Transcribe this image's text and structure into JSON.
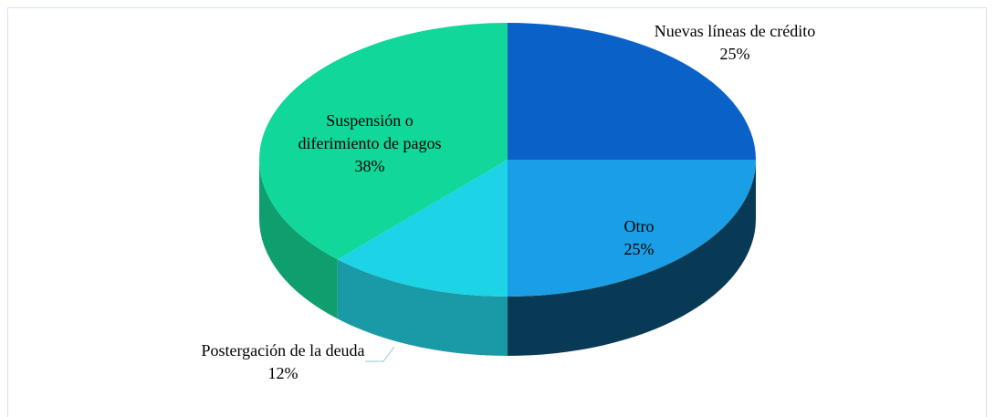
{
  "chart_data": {
    "type": "pie",
    "is_3d": true,
    "categories": [
      "Nuevas líneas de crédito",
      "Otro",
      "Postergación de la deuda",
      "Suspensión o diferimiento de pagos"
    ],
    "values": [
      25,
      25,
      12,
      38
    ],
    "value_labels": [
      "25%",
      "25%",
      "12%",
      "38%"
    ],
    "colors": [
      "#0a62c8",
      "#1a9fe6",
      "#1dd3e6",
      "#12d79a"
    ],
    "side_colors": [
      "#083c6e",
      "#083a55",
      "#1a9aa6",
      "#0f9e6e"
    ]
  }
}
